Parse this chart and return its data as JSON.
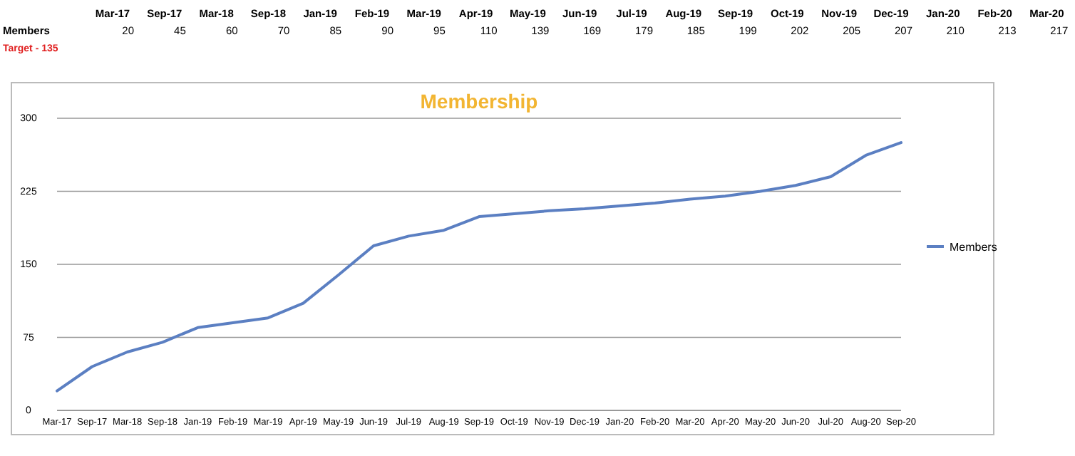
{
  "chart_data": [
    {
      "type": "other",
      "categories": [
        "Mar-17",
        "Sep-17",
        "Mar-18",
        "Sep-18",
        "Jan-19",
        "Feb-19",
        "Mar-19",
        "Apr-19",
        "May-19",
        "Jun-19",
        "Jul-19",
        "Aug-19",
        "Sep-19",
        "Oct-19",
        "Nov-19",
        "Dec-19",
        "Jan-20",
        "Feb-20",
        "Mar-20"
      ],
      "series": [
        {
          "name": "Members",
          "values": [
            20,
            45,
            60,
            70,
            85,
            90,
            95,
            110,
            139,
            169,
            179,
            185,
            199,
            202,
            205,
            207,
            210,
            213,
            217
          ]
        }
      ],
      "data_labels": true,
      "annotations": [
        "Target - 135"
      ]
    },
    {
      "type": "line",
      "title": "Membership",
      "categories": [
        "Mar-17",
        "Sep-17",
        "Mar-18",
        "Sep-18",
        "Jan-19",
        "Feb-19",
        "Mar-19",
        "Apr-19",
        "May-19",
        "Jun-19",
        "Jul-19",
        "Aug-19",
        "Sep-19",
        "Oct-19",
        "Nov-19",
        "Dec-19",
        "Jan-20",
        "Feb-20",
        "Mar-20",
        "Apr-20",
        "May-20",
        "Jun-20",
        "Jul-20",
        "Aug-20",
        "Sep-20"
      ],
      "series": [
        {
          "name": "Members",
          "color": "#5b7fc2",
          "values": [
            20,
            45,
            60,
            70,
            85,
            90,
            95,
            110,
            139,
            169,
            179,
            185,
            199,
            202,
            205,
            207,
            210,
            213,
            217,
            220,
            225,
            231,
            240,
            262,
            275
          ]
        }
      ],
      "ylim": [
        0,
        300
      ],
      "yticks": [
        0,
        75,
        150,
        225,
        300
      ],
      "grid": "y",
      "legend": "right",
      "marker": "none"
    }
  ]
}
